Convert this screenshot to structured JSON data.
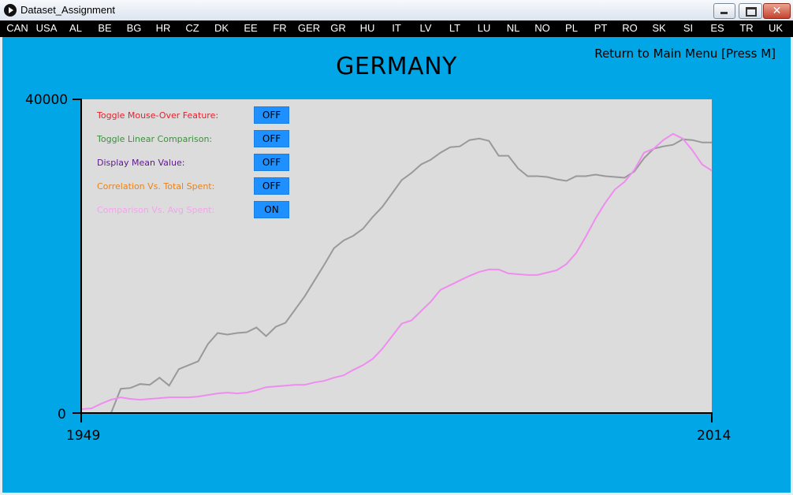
{
  "window": {
    "title": "Dataset_Assignment",
    "close_glyph": "✕"
  },
  "nav": [
    "CAN",
    "USA",
    "AL",
    "BE",
    "BG",
    "HR",
    "CZ",
    "DK",
    "EE",
    "FR",
    "GER",
    "GR",
    "HU",
    "IT",
    "LV",
    "LT",
    "LU",
    "NL",
    "NO",
    "PL",
    "PT",
    "RO",
    "SK",
    "SI",
    "ES",
    "TR",
    "UK"
  ],
  "header": {
    "title": "GERMANY",
    "return_link": "Return to Main Menu [Press M]"
  },
  "toggles": [
    {
      "label": "Toggle Mouse-Over Feature:",
      "state": "OFF",
      "color": "#e8202a"
    },
    {
      "label": "Toggle Linear Comparison:",
      "state": "OFF",
      "color": "#3c8f3c"
    },
    {
      "label": "Display Mean Value:",
      "state": "OFF",
      "color": "#5b1a8a"
    },
    {
      "label": "Correlation Vs. Total Spent:",
      "state": "OFF",
      "color": "#e8821e"
    },
    {
      "label": "Comparison Vs. Avg Spent:",
      "state": "ON",
      "color": "#f5a3f0"
    }
  ],
  "colors": {
    "background": "#00a6e6",
    "plot_bg": "#dcdcdc",
    "toggle_button": "#1e90ff",
    "series_gray": "#999999",
    "series_pink": "#f08cf0"
  },
  "chart_data": {
    "type": "line",
    "x_min_label": "1949",
    "x_max_label": "2014",
    "y_max_label": "40000",
    "y_min_label": "0",
    "xlim": [
      1949,
      2014
    ],
    "ylim": [
      0,
      40000
    ],
    "x": [
      1949,
      1950,
      1951,
      1952,
      1953,
      1954,
      1955,
      1956,
      1957,
      1958,
      1959,
      1960,
      1961,
      1962,
      1963,
      1964,
      1965,
      1966,
      1967,
      1968,
      1969,
      1970,
      1971,
      1972,
      1973,
      1974,
      1975,
      1976,
      1977,
      1978,
      1979,
      1980,
      1981,
      1982,
      1983,
      1984,
      1985,
      1986,
      1987,
      1988,
      1989,
      1990,
      1991,
      1992,
      1993,
      1994,
      1995,
      1996,
      1997,
      1998,
      1999,
      2000,
      2001,
      2002,
      2003,
      2004,
      2005,
      2006,
      2007,
      2008,
      2009,
      2010,
      2011,
      2012,
      2013,
      2014
    ],
    "series": [
      {
        "color": "#999999",
        "values": [
          null,
          null,
          null,
          0,
          3100,
          3200,
          3700,
          3600,
          4500,
          3500,
          5600,
          6100,
          6600,
          8800,
          10200,
          10000,
          10200,
          10300,
          10900,
          9800,
          11000,
          11500,
          13200,
          14900,
          16900,
          18900,
          21000,
          22000,
          22600,
          23500,
          25000,
          26300,
          28000,
          29700,
          30600,
          31700,
          32300,
          33200,
          33900,
          34000,
          34800,
          35000,
          34700,
          32800,
          32800,
          31200,
          30200,
          30200,
          30100,
          29800,
          29600,
          30200,
          30200,
          30400,
          30200,
          30100,
          30000,
          30800,
          32500,
          33700,
          34000,
          34200,
          34900,
          34800,
          34500,
          34500
        ]
      },
      {
        "color": "#f08cf0",
        "values": [
          500,
          600,
          1200,
          1700,
          2000,
          1800,
          1700,
          1800,
          1900,
          2000,
          2000,
          2000,
          2100,
          2300,
          2500,
          2600,
          2500,
          2600,
          2900,
          3300,
          3400,
          3500,
          3600,
          3600,
          3900,
          4100,
          4500,
          4800,
          5500,
          6100,
          6900,
          8200,
          9800,
          11400,
          11800,
          13000,
          14200,
          15700,
          16300,
          16900,
          17500,
          18000,
          18300,
          18300,
          17800,
          17700,
          17600,
          17600,
          17900,
          18200,
          19000,
          20400,
          22500,
          24800,
          26800,
          28500,
          29500,
          31000,
          33200,
          33700,
          34800,
          35600,
          35000,
          33500,
          31700,
          30900
        ]
      }
    ]
  }
}
